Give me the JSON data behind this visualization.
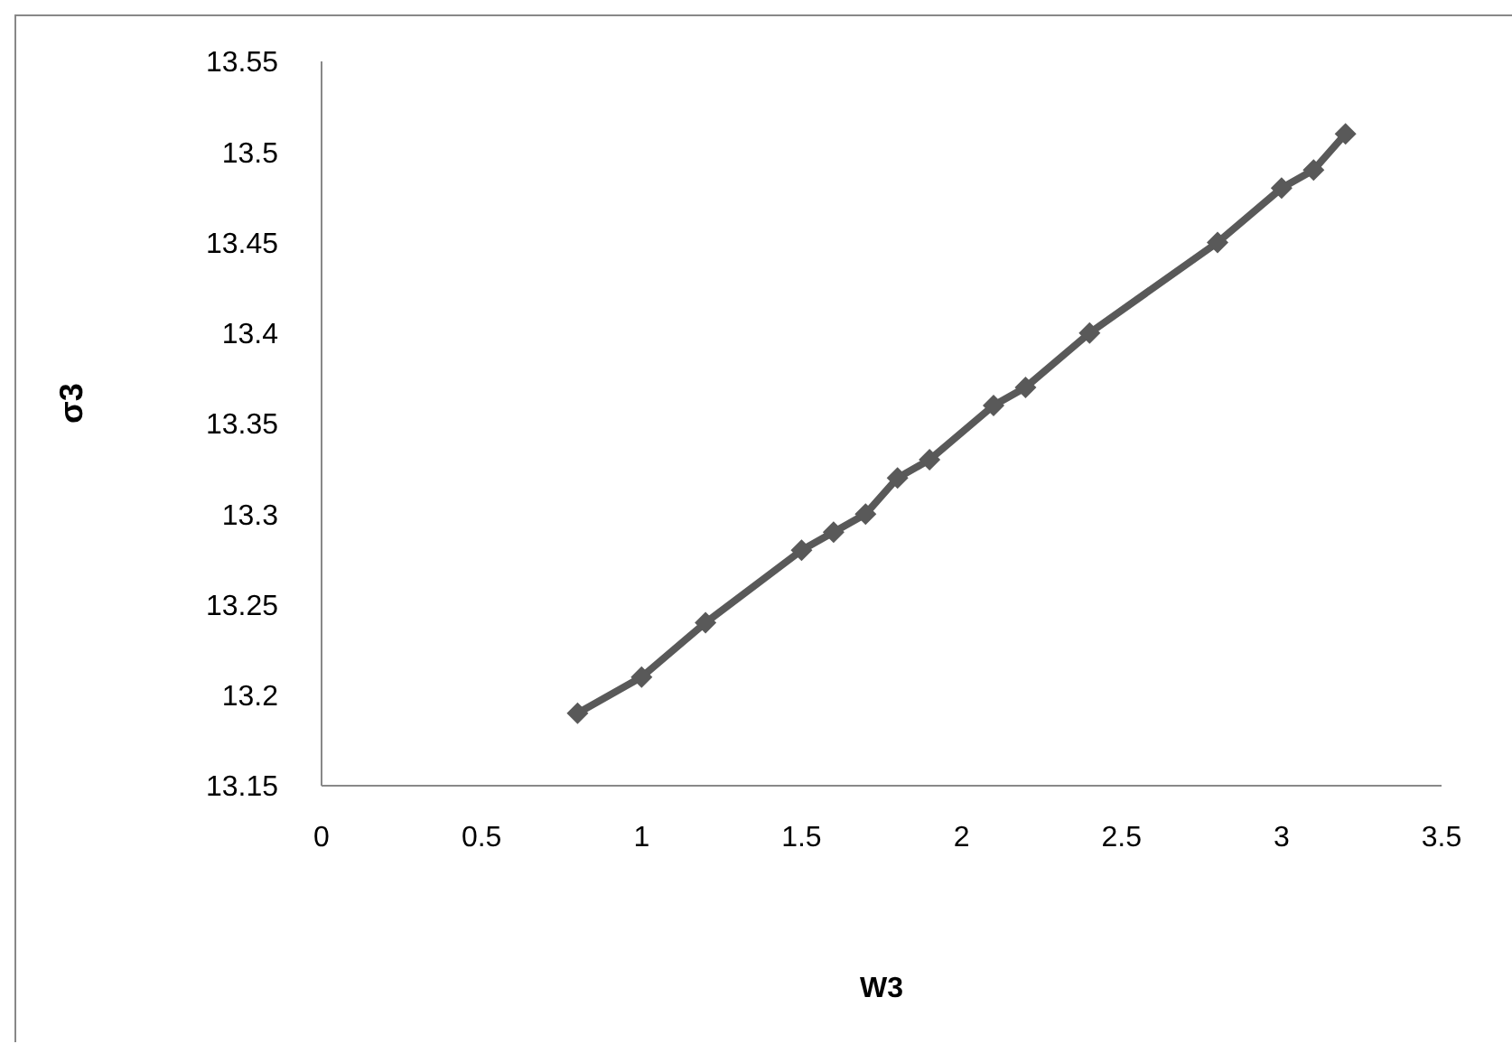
{
  "chart_data": {
    "type": "line",
    "xlabel": "W3",
    "ylabel": "σ3",
    "x": [
      0.8,
      1.0,
      1.2,
      1.5,
      1.6,
      1.7,
      1.8,
      1.9,
      2.1,
      2.2,
      2.4,
      2.8,
      3.0,
      3.1,
      3.2
    ],
    "series": [
      {
        "color": "#595959",
        "values": [
          13.19,
          13.21,
          13.24,
          13.28,
          13.29,
          13.3,
          13.32,
          13.33,
          13.36,
          13.37,
          13.4,
          13.45,
          13.48,
          13.49,
          13.51
        ]
      }
    ],
    "xlim": [
      0,
      3.5
    ],
    "xticks": [
      0,
      0.5,
      1,
      1.5,
      2,
      2.5,
      3,
      3.5
    ],
    "ylim": [
      13.15,
      13.55
    ],
    "yticks": [
      13.15,
      13.2,
      13.25,
      13.3,
      13.35,
      13.4,
      13.45,
      13.5,
      13.55
    ],
    "grid": false,
    "legend": false,
    "marker": "diamond",
    "line_style": "solid"
  }
}
